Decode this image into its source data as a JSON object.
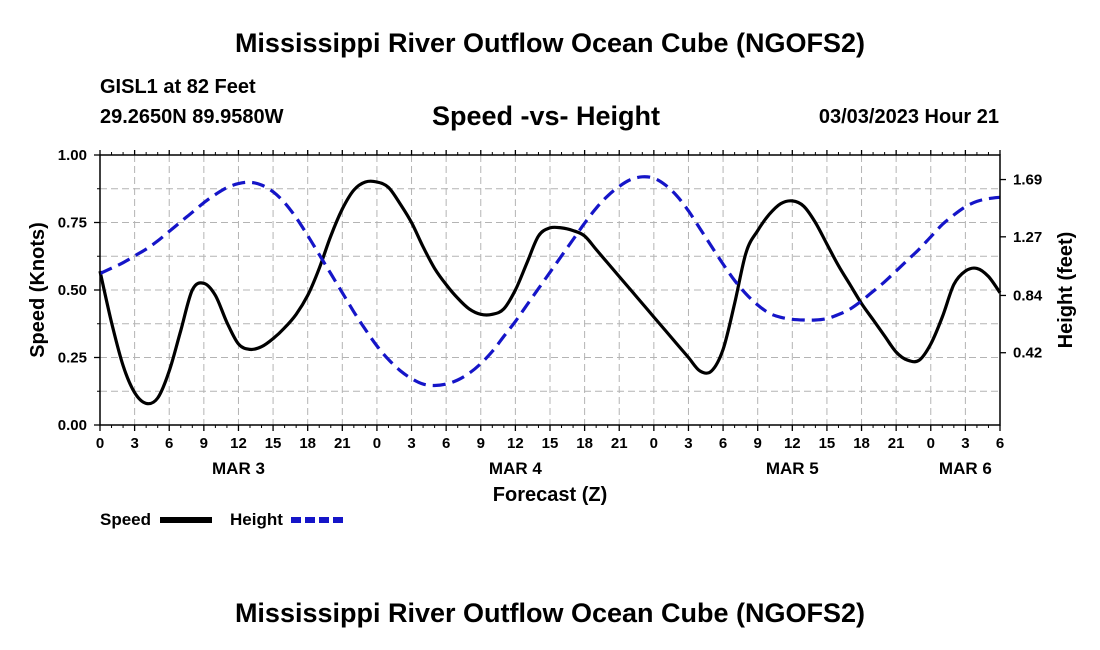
{
  "header": {
    "title": "Mississippi River Outflow Ocean Cube (NGOFS2)",
    "station": "GISL1 at 82 Feet",
    "coordinates": "29.2650N  89.9580W",
    "subtitle": "Speed -vs- Height",
    "datetime": "03/03/2023 Hour 21"
  },
  "footer": {
    "title": "Mississippi River Outflow Ocean Cube (NGOFS2)"
  },
  "legend": {
    "speed_label": "Speed",
    "height_label": "Height"
  },
  "colors": {
    "speed": "#000000",
    "height": "#1515c8",
    "grid": "#b4b4b4"
  },
  "chart_data": {
    "type": "line",
    "title": "Speed -vs- Height",
    "xlabel": "Forecast (Z)",
    "ylabel_left": "Speed (Knots)",
    "ylabel_right": "Height (feet)",
    "x_unit": "hours from 03/03/2023 00Z",
    "xlim": [
      0,
      78
    ],
    "ylim_left": [
      0.0,
      1.0
    ],
    "ylim_right": [
      -0.11,
      1.87
    ],
    "x_ticks": [
      0,
      3,
      6,
      9,
      12,
      15,
      18,
      21,
      24,
      27,
      30,
      33,
      36,
      39,
      42,
      45,
      48,
      51,
      54,
      57,
      60,
      63,
      66,
      69,
      72,
      75,
      78
    ],
    "x_tick_labels": [
      "0",
      "3",
      "6",
      "9",
      "12",
      "15",
      "18",
      "21",
      "0",
      "3",
      "6",
      "9",
      "12",
      "15",
      "18",
      "21",
      "0",
      "3",
      "6",
      "9",
      "12",
      "15",
      "18",
      "21",
      "0",
      "3",
      "6"
    ],
    "day_labels": [
      {
        "label": "MAR 3",
        "x": 12
      },
      {
        "label": "MAR 4",
        "x": 36
      },
      {
        "label": "MAR 5",
        "x": 60
      },
      {
        "label": "MAR 6",
        "x": 75
      }
    ],
    "y_left_ticks": [
      0.0,
      0.25,
      0.5,
      0.75,
      1.0
    ],
    "y_left_tick_labels": [
      "0.00",
      "0.25",
      "0.50",
      "0.75",
      "1.00"
    ],
    "y_right_ticks": [
      0.42,
      0.84,
      1.27,
      1.69
    ],
    "y_right_tick_labels": [
      "0.42",
      "0.84",
      "1.27",
      "1.69"
    ],
    "grid": true,
    "series": [
      {
        "name": "Speed",
        "axis": "left",
        "style": "solid",
        "points": [
          [
            0,
            0.57
          ],
          [
            1,
            0.38
          ],
          [
            2,
            0.22
          ],
          [
            3,
            0.12
          ],
          [
            4,
            0.08
          ],
          [
            5,
            0.1
          ],
          [
            6,
            0.2
          ],
          [
            7,
            0.35
          ],
          [
            8,
            0.5
          ],
          [
            9,
            0.525
          ],
          [
            10,
            0.48
          ],
          [
            11,
            0.38
          ],
          [
            12,
            0.3
          ],
          [
            13,
            0.28
          ],
          [
            14,
            0.29
          ],
          [
            15,
            0.32
          ],
          [
            16,
            0.36
          ],
          [
            17,
            0.41
          ],
          [
            18,
            0.48
          ],
          [
            19,
            0.58
          ],
          [
            20,
            0.7
          ],
          [
            21,
            0.8
          ],
          [
            22,
            0.87
          ],
          [
            23,
            0.9
          ],
          [
            24,
            0.9
          ],
          [
            25,
            0.88
          ],
          [
            26,
            0.82
          ],
          [
            27,
            0.75
          ],
          [
            28,
            0.66
          ],
          [
            29,
            0.58
          ],
          [
            30,
            0.52
          ],
          [
            31,
            0.47
          ],
          [
            32,
            0.43
          ],
          [
            33,
            0.41
          ],
          [
            34,
            0.41
          ],
          [
            35,
            0.43
          ],
          [
            36,
            0.5
          ],
          [
            37,
            0.6
          ],
          [
            38,
            0.7
          ],
          [
            39,
            0.73
          ],
          [
            40,
            0.73
          ],
          [
            41,
            0.72
          ],
          [
            42,
            0.7
          ],
          [
            43,
            0.65
          ],
          [
            44,
            0.6
          ],
          [
            45,
            0.55
          ],
          [
            46,
            0.5
          ],
          [
            47,
            0.45
          ],
          [
            48,
            0.4
          ],
          [
            49,
            0.35
          ],
          [
            50,
            0.3
          ],
          [
            51,
            0.25
          ],
          [
            52,
            0.2
          ],
          [
            53,
            0.2
          ],
          [
            54,
            0.28
          ],
          [
            55,
            0.45
          ],
          [
            56,
            0.64
          ],
          [
            57,
            0.72
          ],
          [
            58,
            0.78
          ],
          [
            59,
            0.82
          ],
          [
            60,
            0.83
          ],
          [
            61,
            0.81
          ],
          [
            62,
            0.75
          ],
          [
            63,
            0.67
          ],
          [
            64,
            0.59
          ],
          [
            65,
            0.52
          ],
          [
            66,
            0.45
          ],
          [
            67,
            0.39
          ],
          [
            68,
            0.33
          ],
          [
            69,
            0.27
          ],
          [
            70,
            0.24
          ],
          [
            71,
            0.24
          ],
          [
            72,
            0.3
          ],
          [
            73,
            0.4
          ],
          [
            74,
            0.52
          ],
          [
            75,
            0.57
          ],
          [
            76,
            0.58
          ],
          [
            77,
            0.55
          ],
          [
            78,
            0.49
          ]
        ]
      },
      {
        "name": "Height",
        "axis": "right",
        "style": "dashed",
        "points": [
          [
            0,
            1.0
          ],
          [
            1,
            1.04
          ],
          [
            2,
            1.08
          ],
          [
            3,
            1.13
          ],
          [
            4,
            1.18
          ],
          [
            5,
            1.24
          ],
          [
            6,
            1.31
          ],
          [
            7,
            1.38
          ],
          [
            8,
            1.45
          ],
          [
            9,
            1.52
          ],
          [
            10,
            1.58
          ],
          [
            11,
            1.63
          ],
          [
            12,
            1.66
          ],
          [
            13,
            1.67
          ],
          [
            14,
            1.65
          ],
          [
            15,
            1.6
          ],
          [
            16,
            1.52
          ],
          [
            17,
            1.41
          ],
          [
            18,
            1.28
          ],
          [
            19,
            1.14
          ],
          [
            20,
            1.0
          ],
          [
            21,
            0.86
          ],
          [
            22,
            0.72
          ],
          [
            23,
            0.59
          ],
          [
            24,
            0.47
          ],
          [
            25,
            0.37
          ],
          [
            26,
            0.29
          ],
          [
            27,
            0.23
          ],
          [
            28,
            0.19
          ],
          [
            29,
            0.18
          ],
          [
            30,
            0.19
          ],
          [
            31,
            0.22
          ],
          [
            32,
            0.27
          ],
          [
            33,
            0.34
          ],
          [
            34,
            0.43
          ],
          [
            35,
            0.54
          ],
          [
            36,
            0.65
          ],
          [
            37,
            0.77
          ],
          [
            38,
            0.89
          ],
          [
            39,
            1.01
          ],
          [
            40,
            1.13
          ],
          [
            41,
            1.25
          ],
          [
            42,
            1.37
          ],
          [
            43,
            1.48
          ],
          [
            44,
            1.57
          ],
          [
            45,
            1.64
          ],
          [
            46,
            1.69
          ],
          [
            47,
            1.71
          ],
          [
            48,
            1.7
          ],
          [
            49,
            1.65
          ],
          [
            50,
            1.57
          ],
          [
            51,
            1.46
          ],
          [
            52,
            1.33
          ],
          [
            53,
            1.2
          ],
          [
            54,
            1.07
          ],
          [
            55,
            0.95
          ],
          [
            56,
            0.85
          ],
          [
            57,
            0.77
          ],
          [
            58,
            0.71
          ],
          [
            59,
            0.68
          ],
          [
            60,
            0.665
          ],
          [
            61,
            0.66
          ],
          [
            62,
            0.66
          ],
          [
            63,
            0.67
          ],
          [
            64,
            0.7
          ],
          [
            65,
            0.74
          ],
          [
            66,
            0.8
          ],
          [
            67,
            0.87
          ],
          [
            68,
            0.94
          ],
          [
            69,
            1.02
          ],
          [
            70,
            1.1
          ],
          [
            71,
            1.18
          ],
          [
            72,
            1.27
          ],
          [
            73,
            1.36
          ],
          [
            74,
            1.43
          ],
          [
            75,
            1.49
          ],
          [
            76,
            1.53
          ],
          [
            77,
            1.55
          ],
          [
            78,
            1.56
          ]
        ]
      }
    ]
  }
}
